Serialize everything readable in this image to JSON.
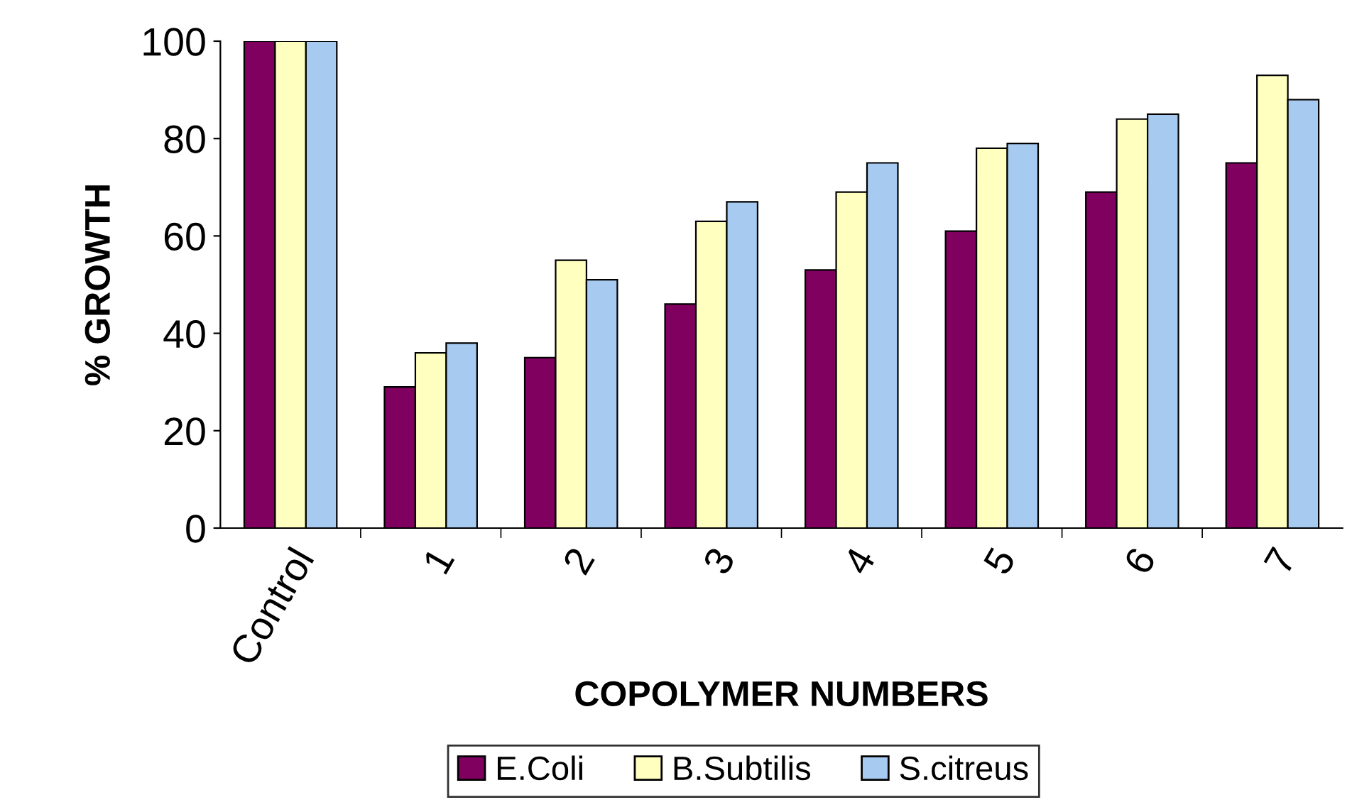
{
  "chart_data": {
    "type": "bar",
    "xlabel": "COPOLYMER NUMBERS",
    "ylabel": "% GROWTH",
    "categories": [
      "Control",
      "1",
      "2",
      "3",
      "4",
      "5",
      "6",
      "7"
    ],
    "series": [
      {
        "name": "E.Coli",
        "color": "#800060",
        "values": [
          100,
          29,
          35,
          46,
          53,
          61,
          69,
          75
        ]
      },
      {
        "name": "B.Subtilis",
        "color": "#ffffc0",
        "values": [
          100,
          36,
          55,
          63,
          69,
          78,
          84,
          93
        ]
      },
      {
        "name": "S.citreus",
        "color": "#a6caf0",
        "values": [
          100,
          38,
          51,
          67,
          75,
          79,
          85,
          88
        ]
      }
    ],
    "ylim": [
      0,
      100
    ],
    "yticks": [
      0,
      20,
      40,
      60,
      80,
      100
    ],
    "grid": false,
    "legend": "bottom"
  }
}
